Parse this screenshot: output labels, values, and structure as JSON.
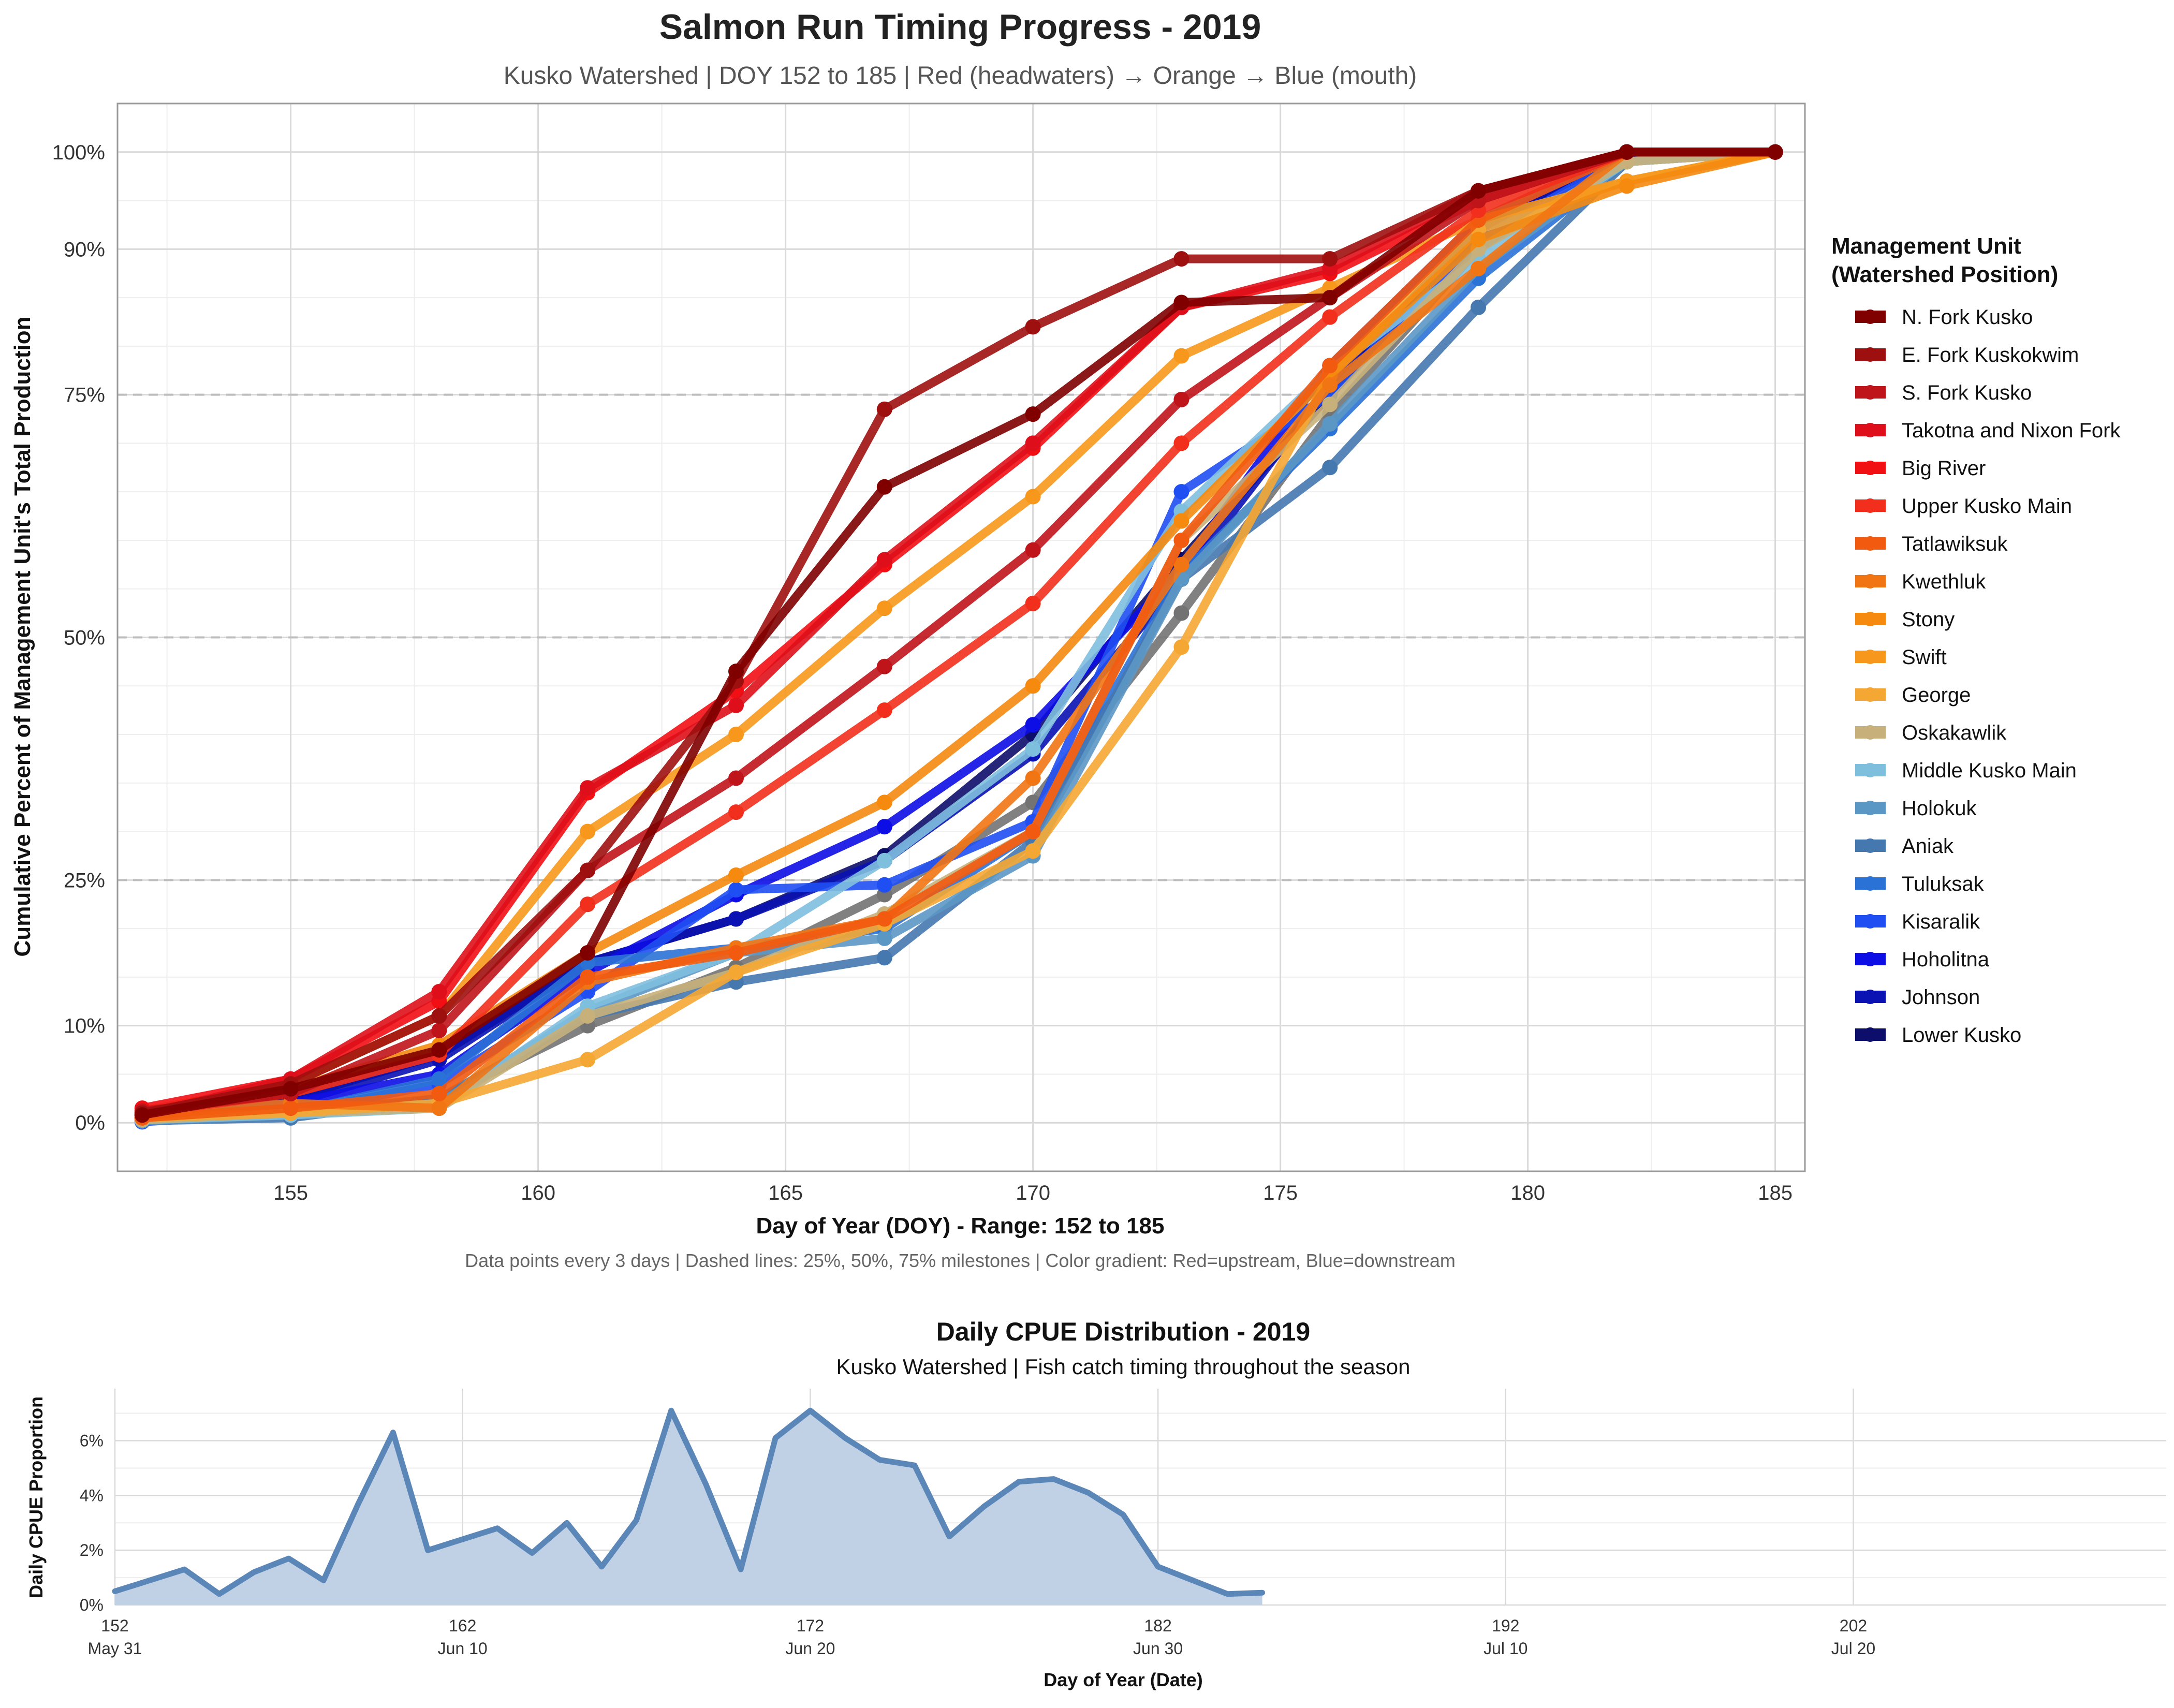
{
  "colors": {
    "series": [
      "#800000",
      "#9e0f0f",
      "#c0141b",
      "#de0f1a",
      "#f20f14",
      "#f22f1c",
      "#f25a10",
      "#f27514",
      "#f58a0f",
      "#f7981c",
      "#f5a733",
      "#c8b07a",
      "#7fbfde",
      "#5b97c4",
      "#4678b0",
      "#2b72d6",
      "#1f4ff2",
      "#0d0de6",
      "#0a12b3",
      "#0d0d6b"
    ],
    "area_fill": "#c1d1e5",
    "area_line": "#5b87b8",
    "grid_major": "#d9d9d9",
    "grid_minor": "#eeeeee",
    "milestone": "#bdbdbd"
  },
  "main": {
    "title": "Salmon Run Timing Progress - 2019",
    "subtitle": "Kusko Watershed | DOY 152 to 185 | Red (headwaters) → Orange → Blue (mouth)",
    "xlabel": "Day of Year (DOY) - Range: 152 to 185",
    "ylabel": "Cumulative Percent of Management Unit's Total Production",
    "caption": "Data points every 3 days | Dashed lines: 25%, 50%, 75% milestones | Color gradient: Red=upstream, Blue=downstream",
    "legend_title_line1": "Management Unit",
    "legend_title_line2": "(Watershed Position)"
  },
  "cpue": {
    "title": "Daily CPUE Distribution - 2019",
    "subtitle": "Kusko Watershed | Fish catch timing throughout the season",
    "xlabel": "Day of Year (Date)",
    "ylabel": "Daily CPUE Proportion"
  },
  "chart_data": [
    {
      "type": "line",
      "x": [
        152,
        155,
        158,
        161,
        164,
        167,
        170,
        173,
        176,
        179,
        182,
        185
      ],
      "xlim": [
        151.5,
        185.6
      ],
      "ylim": [
        -5,
        105
      ],
      "x_ticks": [
        155,
        160,
        165,
        170,
        175,
        180,
        185
      ],
      "y_ticks": [
        0,
        10,
        25,
        50,
        75,
        90,
        100
      ],
      "y_tick_labels": [
        "0%",
        "10%",
        "25%",
        "50%",
        "75%",
        "90%",
        "100%"
      ],
      "milestones": [
        25,
        50,
        75
      ],
      "grid": true,
      "legend_position": "right",
      "series": [
        {
          "name": "N. Fork Kusko",
          "values": [
            0.8,
            3.5,
            7.5,
            17.5,
            46.5,
            65.5,
            73,
            84.5,
            85,
            96,
            100,
            100
          ]
        },
        {
          "name": "E. Fork Kuskokwim",
          "values": [
            1,
            4,
            11,
            26,
            45.5,
            73.5,
            82,
            89,
            89,
            96,
            100,
            100
          ]
        },
        {
          "name": "S. Fork Kusko",
          "values": [
            1.2,
            3,
            9.5,
            26,
            35.5,
            47,
            59,
            74.5,
            85,
            95,
            100,
            100
          ]
        },
        {
          "name": "Takotna and Nixon Fork",
          "values": [
            0.8,
            4.5,
            13.5,
            34.5,
            43,
            58,
            70,
            84,
            88,
            96,
            100,
            100
          ]
        },
        {
          "name": "Big River",
          "values": [
            1.5,
            4.5,
            12.5,
            34,
            44.5,
            57.5,
            69.5,
            84,
            87.5,
            95,
            100,
            100
          ]
        },
        {
          "name": "Upper Kusko Main",
          "values": [
            1,
            3,
            7,
            22.5,
            32,
            42.5,
            53.5,
            70,
            83,
            94,
            100,
            100
          ]
        },
        {
          "name": "Tatlawiksuk",
          "values": [
            0.5,
            1.5,
            3,
            15,
            17.5,
            21,
            30,
            60,
            78,
            93,
            100,
            100
          ]
        },
        {
          "name": "Kwethluk",
          "values": [
            0.7,
            2,
            1.5,
            14.5,
            18,
            21,
            35.5,
            57.5,
            76,
            88,
            100,
            100
          ]
        },
        {
          "name": "Stony",
          "values": [
            1,
            3.5,
            8,
            17.5,
            25.5,
            33,
            45,
            62,
            77,
            91,
            96.5,
            100
          ]
        },
        {
          "name": "Swift",
          "values": [
            1.2,
            4,
            11,
            30,
            40,
            53,
            64.5,
            79,
            86,
            93,
            97,
            100
          ]
        },
        {
          "name": "George",
          "values": [
            0.5,
            1,
            2,
            6.5,
            15.5,
            20.5,
            28,
            49,
            77,
            92,
            97,
            100
          ]
        },
        {
          "name": "Oskakawlik",
          "values": [
            0.3,
            1,
            1.5,
            11,
            15.5,
            21.5,
            30,
            60,
            74,
            90,
            99,
            100
          ]
        },
        {
          "name": "Middle Kusko Main",
          "values": [
            0.3,
            0.8,
            1.5,
            12,
            17.5,
            27,
            38.5,
            63,
            77.5,
            89,
            99,
            100
          ]
        },
        {
          "name": "Holokuk",
          "values": [
            0.2,
            0.8,
            2,
            11.5,
            17.5,
            19,
            27.5,
            56,
            72,
            88,
            99,
            100
          ]
        },
        {
          "name": "Aniak",
          "values": [
            0.2,
            0.5,
            2.5,
            11,
            14.5,
            17,
            29,
            56,
            67.5,
            84,
            99,
            100
          ]
        },
        {
          "name": "Tuluksak",
          "values": [
            0.2,
            1,
            4.5,
            16.5,
            18,
            20,
            30,
            56.5,
            71.5,
            87,
            99,
            100
          ]
        },
        {
          "name": "Kisaralik",
          "values": [
            0.1,
            1,
            4,
            13.5,
            24,
            24.5,
            31,
            65,
            75,
            91,
            99.5,
            100
          ]
        },
        {
          "name": "Hoholitna",
          "values": [
            0.5,
            2,
            5,
            15.5,
            23.5,
            30.5,
            41,
            57,
            78,
            93,
            100,
            100
          ]
        },
        {
          "name": "Johnson",
          "values": [
            0.5,
            2,
            6.5,
            16.5,
            21,
            27,
            38,
            56,
            76,
            92,
            100,
            100
          ]
        },
        {
          "name": "Lower Kusko",
          "values": [
            0.8,
            2.5,
            7,
            16.5,
            21,
            27.5,
            40,
            58,
            75,
            92,
            100,
            100
          ]
        },
        {
          "name": "",
          "values": [
            0.5,
            1,
            2.5,
            10,
            16,
            23.5,
            33,
            52.5,
            73,
            90,
            99.5,
            100
          ]
        }
      ]
    },
    {
      "type": "area",
      "x": [
        152,
        153,
        154,
        155,
        156,
        157,
        158,
        159,
        160,
        161,
        162,
        163,
        164,
        165,
        166,
        167,
        168,
        169,
        170,
        171,
        172,
        173,
        174,
        175,
        176,
        177,
        178,
        179,
        180,
        181,
        182,
        183,
        184,
        185
      ],
      "values": [
        0.5,
        0.9,
        1.3,
        0.4,
        1.2,
        1.7,
        0.9,
        3.7,
        6.3,
        2.0,
        2.4,
        2.8,
        1.9,
        3.0,
        1.4,
        3.1,
        7.1,
        4.4,
        1.3,
        6.1,
        7.1,
        6.1,
        5.3,
        5.1,
        2.5,
        3.6,
        4.5,
        4.6,
        4.1,
        3.3,
        1.4,
        0.9,
        0.4,
        0.45
      ],
      "xlim": [
        152,
        211
      ],
      "ylim": [
        0,
        7.9
      ],
      "x_ticks": [
        152,
        162,
        172,
        182,
        192,
        202
      ],
      "x_tick_dates": [
        "May 31",
        "Jun 10",
        "Jun 20",
        "Jun 30",
        "Jul 10",
        "Jul 20"
      ],
      "y_ticks": [
        0,
        2,
        4,
        6
      ],
      "y_tick_labels": [
        "0%",
        "2%",
        "4%",
        "6%"
      ],
      "grid": true
    }
  ]
}
